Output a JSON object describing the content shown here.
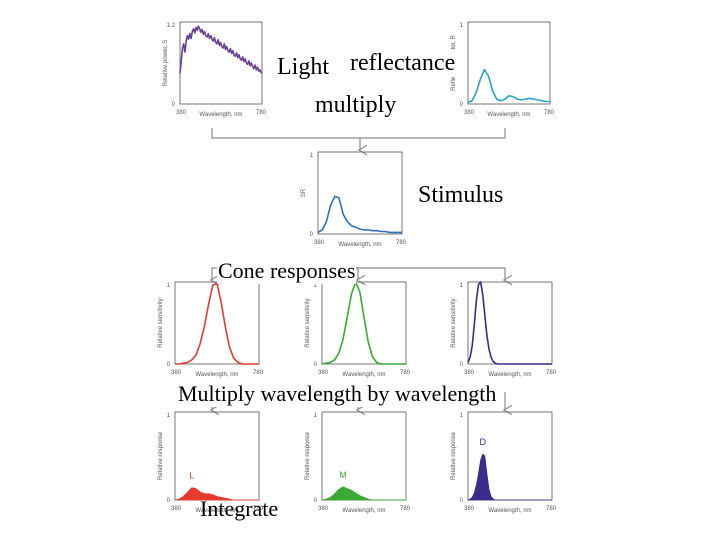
{
  "labels": {
    "light": "Light",
    "reflectance": "reflectance",
    "multiply": "multiply",
    "stimulus": "Stimulus",
    "cone_responses": "Cone responses",
    "multiply_wl": "Multiply wavelength by wavelength",
    "integrate": "Integrate"
  },
  "colors": {
    "light": "#6a3d9a",
    "reflectance": "#29a3d1",
    "stimulus": "#2f6fc4",
    "L": "#e53b2c",
    "M": "#3aa935",
    "S": "#3d2a8a",
    "axis": "#555555",
    "flow": "#8c8c8c"
  },
  "chart_data": [
    {
      "id": "light",
      "type": "line",
      "ylabel": "Relative power, S",
      "xlabel": "Wavelength, nm",
      "xlim": [
        380,
        780
      ],
      "ylim": [
        0,
        1.2
      ],
      "xticks": [
        "380",
        "780"
      ],
      "yticks": [
        "0",
        "1.2"
      ],
      "x": [
        380,
        386,
        392,
        398,
        404,
        410,
        416,
        422,
        428,
        434,
        440,
        446,
        452,
        458,
        464,
        470,
        476,
        482,
        488,
        494,
        500,
        506,
        512,
        518,
        524,
        530,
        536,
        542,
        548,
        554,
        560,
        566,
        572,
        578,
        584,
        590,
        596,
        602,
        608,
        614,
        620,
        626,
        632,
        638,
        644,
        650,
        656,
        662,
        668,
        674,
        680,
        686,
        692,
        698,
        704,
        710,
        716,
        722,
        728,
        734,
        740,
        746,
        752,
        758,
        764,
        770,
        776,
        780
      ],
      "y": [
        0.45,
        0.62,
        0.82,
        0.88,
        0.76,
        0.92,
        1.0,
        0.95,
        1.03,
        0.96,
        1.06,
        1.1,
        1.04,
        1.12,
        1.08,
        1.14,
        1.1,
        1.05,
        1.09,
        1.02,
        1.06,
        1.0,
        0.98,
        1.03,
        0.96,
        1.0,
        0.95,
        0.92,
        0.97,
        0.9,
        0.88,
        0.94,
        0.86,
        0.9,
        0.84,
        0.82,
        0.88,
        0.8,
        0.84,
        0.78,
        0.76,
        0.81,
        0.74,
        0.78,
        0.71,
        0.7,
        0.75,
        0.68,
        0.72,
        0.66,
        0.64,
        0.69,
        0.62,
        0.66,
        0.6,
        0.58,
        0.63,
        0.56,
        0.6,
        0.55,
        0.52,
        0.57,
        0.5,
        0.54,
        0.48,
        0.5,
        0.46,
        0.45
      ],
      "color_key": "light"
    },
    {
      "id": "reflectance",
      "type": "line",
      "ylabel": "Reflectance factor, R",
      "xlabel": "Wavelength, nm",
      "xlim": [
        380,
        780
      ],
      "ylim": [
        0,
        1
      ],
      "xticks": [
        "380",
        "780"
      ],
      "yticks": [
        "0",
        "1"
      ],
      "x": [
        380,
        400,
        420,
        440,
        460,
        480,
        500,
        520,
        540,
        560,
        580,
        600,
        620,
        640,
        660,
        680,
        700,
        720,
        740,
        760,
        780
      ],
      "y": [
        0.02,
        0.04,
        0.14,
        0.3,
        0.42,
        0.34,
        0.16,
        0.06,
        0.04,
        0.06,
        0.1,
        0.09,
        0.06,
        0.05,
        0.06,
        0.07,
        0.06,
        0.05,
        0.04,
        0.03,
        0.03
      ],
      "color_key": "reflectance"
    },
    {
      "id": "stimulus",
      "type": "line",
      "ylabel": "SR",
      "xlabel": "Wavelength, nm",
      "xlim": [
        380,
        780
      ],
      "ylim": [
        0,
        1
      ],
      "xticks": [
        "380",
        "780"
      ],
      "yticks": [
        "0",
        "1"
      ],
      "x": [
        380,
        400,
        420,
        440,
        460,
        480,
        500,
        520,
        540,
        560,
        580,
        600,
        620,
        640,
        660,
        680,
        700,
        720,
        740,
        760,
        780
      ],
      "y": [
        0.02,
        0.05,
        0.15,
        0.35,
        0.46,
        0.44,
        0.24,
        0.15,
        0.1,
        0.08,
        0.06,
        0.05,
        0.05,
        0.04,
        0.04,
        0.03,
        0.03,
        0.02,
        0.02,
        0.02,
        0.02
      ],
      "color_key": "stimulus"
    },
    {
      "id": "cone_L",
      "type": "line",
      "ylabel": "Relative sensitivity",
      "xlabel": "Wavelength, nm",
      "xlim": [
        380,
        780
      ],
      "ylim": [
        0,
        1
      ],
      "xticks": [
        "380",
        "780"
      ],
      "yticks": [
        "0",
        "1"
      ],
      "x": [
        380,
        400,
        420,
        440,
        460,
        480,
        500,
        520,
        540,
        560,
        580,
        600,
        620,
        640,
        660,
        680,
        700,
        720,
        740,
        760,
        780
      ],
      "y": [
        0.0,
        0.0,
        0.01,
        0.02,
        0.05,
        0.11,
        0.25,
        0.46,
        0.73,
        0.96,
        0.98,
        0.75,
        0.45,
        0.2,
        0.07,
        0.02,
        0.0,
        0.0,
        0.0,
        0.0,
        0.0
      ],
      "color_key": "L"
    },
    {
      "id": "cone_M",
      "type": "line",
      "ylabel": "Relative sensitivity",
      "xlabel": "Wavelength, nm",
      "xlim": [
        380,
        780
      ],
      "ylim": [
        0,
        1
      ],
      "xticks": [
        "380",
        "780"
      ],
      "yticks": [
        "0",
        "1"
      ],
      "x": [
        380,
        400,
        420,
        440,
        460,
        480,
        500,
        520,
        540,
        560,
        580,
        600,
        620,
        640,
        660,
        680,
        700,
        720,
        740,
        760,
        780
      ],
      "y": [
        0.0,
        0.01,
        0.02,
        0.05,
        0.13,
        0.3,
        0.57,
        0.85,
        1.0,
        0.88,
        0.57,
        0.27,
        0.09,
        0.02,
        0.0,
        0.0,
        0.0,
        0.0,
        0.0,
        0.0,
        0.0
      ],
      "color_key": "M"
    },
    {
      "id": "cone_S",
      "type": "line",
      "ylabel": "Relative sensitivity",
      "xlabel": "Wavelength, nm",
      "xlim": [
        380,
        780
      ],
      "ylim": [
        0,
        1
      ],
      "xticks": [
        "380",
        "780"
      ],
      "yticks": [
        "0",
        "1"
      ],
      "x": [
        380,
        390,
        400,
        410,
        420,
        430,
        440,
        450,
        460,
        470,
        480,
        490,
        500,
        510,
        520,
        540,
        560,
        600,
        650,
        700,
        780
      ],
      "y": [
        0.02,
        0.08,
        0.22,
        0.48,
        0.78,
        0.97,
        1.0,
        0.85,
        0.6,
        0.35,
        0.18,
        0.08,
        0.03,
        0.01,
        0.0,
        0.0,
        0.0,
        0.0,
        0.0,
        0.0,
        0.0
      ],
      "color_key": "S"
    },
    {
      "id": "resp_L",
      "type": "area",
      "ylabel": "Relative response",
      "xlabel": "Wavelength, nm",
      "tag": "L",
      "xlim": [
        380,
        780
      ],
      "ylim": [
        0,
        1
      ],
      "xticks": [
        "380",
        "780"
      ],
      "yticks": [
        "0",
        "1"
      ],
      "x": [
        380,
        400,
        420,
        440,
        460,
        480,
        500,
        520,
        540,
        560,
        580,
        600,
        620,
        640,
        660,
        680,
        700,
        720,
        740,
        760,
        780
      ],
      "y": [
        0.0,
        0.01,
        0.04,
        0.09,
        0.14,
        0.13,
        0.09,
        0.07,
        0.07,
        0.06,
        0.04,
        0.03,
        0.02,
        0.01,
        0.0,
        0.0,
        0.0,
        0.0,
        0.0,
        0.0,
        0.0
      ],
      "color_key": "L"
    },
    {
      "id": "resp_M",
      "type": "area",
      "ylabel": "Relative response",
      "xlabel": "Wavelength, nm",
      "tag": "M",
      "xlim": [
        380,
        780
      ],
      "ylim": [
        0,
        1
      ],
      "xticks": [
        "380",
        "780"
      ],
      "yticks": [
        "0",
        "1"
      ],
      "x": [
        380,
        400,
        420,
        440,
        460,
        480,
        500,
        520,
        540,
        560,
        580,
        600,
        620,
        640,
        660,
        680,
        700,
        720,
        740,
        760,
        780
      ],
      "y": [
        0.0,
        0.01,
        0.03,
        0.07,
        0.12,
        0.15,
        0.13,
        0.11,
        0.08,
        0.05,
        0.03,
        0.01,
        0.0,
        0.0,
        0.0,
        0.0,
        0.0,
        0.0,
        0.0,
        0.0,
        0.0
      ],
      "color_key": "M"
    },
    {
      "id": "resp_S",
      "type": "area",
      "ylabel": "Relative response",
      "xlabel": "Wavelength, nm",
      "tag": "D",
      "xlim": [
        380,
        780
      ],
      "ylim": [
        0,
        1
      ],
      "xticks": [
        "380",
        "780"
      ],
      "yticks": [
        "0",
        "1"
      ],
      "x": [
        380,
        390,
        400,
        410,
        420,
        430,
        440,
        450,
        460,
        470,
        480,
        490,
        500,
        510,
        520,
        540,
        560,
        600,
        650,
        700,
        780
      ],
      "y": [
        0.0,
        0.01,
        0.03,
        0.08,
        0.17,
        0.3,
        0.45,
        0.52,
        0.5,
        0.3,
        0.12,
        0.04,
        0.01,
        0.0,
        0.0,
        0.0,
        0.0,
        0.0,
        0.0,
        0.0,
        0.0
      ],
      "color_key": "S"
    }
  ]
}
